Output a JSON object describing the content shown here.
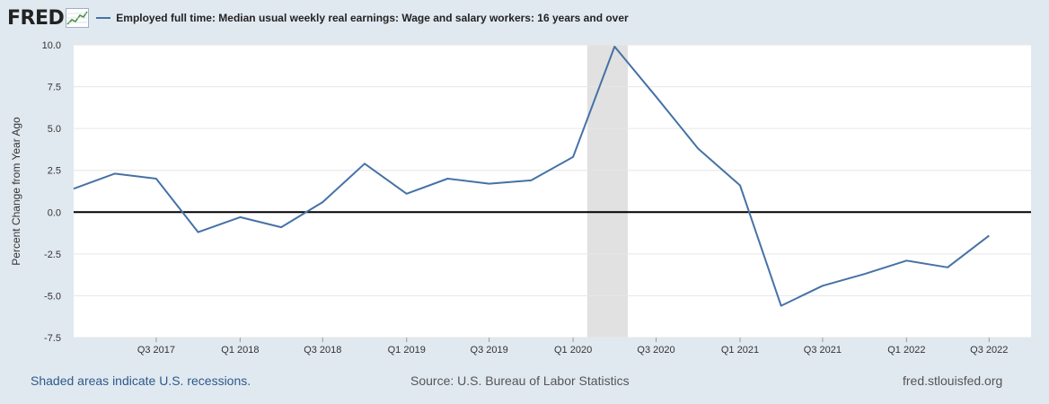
{
  "header": {
    "logo": "FRED",
    "logo_graph_icon": "line-chart-icon"
  },
  "footer": {
    "recession_note": "Shaded areas indicate U.S. recessions.",
    "source": "Source: U.S. Bureau of Labor Statistics",
    "url": "fred.stlouisfed.org"
  },
  "colors": {
    "series": "#4572a7",
    "recession": "#e1e1e1",
    "grid": "#e6e6e6",
    "zero_line": "#000000",
    "background": "#e1e9f0",
    "plot_background": "#ffffff"
  },
  "chart_data": {
    "type": "line",
    "title": "",
    "xlabel": "",
    "ylabel": "Percent Change from Year Ago",
    "ylim": [
      -7.5,
      10.0
    ],
    "yticks": [
      "10.0",
      "7.5",
      "5.0",
      "2.5",
      "0.0",
      "-2.5",
      "-5.0",
      "-7.5"
    ],
    "ytick_values": [
      10.0,
      7.5,
      5.0,
      2.5,
      0.0,
      -2.5,
      -5.0,
      -7.5
    ],
    "xlim": [
      "2017-01-01",
      "2022-10-01"
    ],
    "xtick_labels": [
      "Q3 2017",
      "Q1 2018",
      "Q3 2018",
      "Q1 2019",
      "Q3 2019",
      "Q1 2020",
      "Q3 2020",
      "Q1 2021",
      "Q3 2021",
      "Q1 2022",
      "Q3 2022"
    ],
    "xtick_dates": [
      "2017-07-01",
      "2018-01-01",
      "2018-07-01",
      "2019-01-01",
      "2019-07-01",
      "2020-01-01",
      "2020-07-01",
      "2021-01-01",
      "2021-07-01",
      "2022-01-01",
      "2022-07-01"
    ],
    "recessions": [
      {
        "start": "2020-02-01",
        "end": "2020-04-30"
      }
    ],
    "grid": true,
    "legend": "top-left",
    "series": [
      {
        "name": "Employed full time: Median usual weekly real earnings: Wage and salary workers: 16 years and over",
        "x": [
          "2017-01-01",
          "2017-04-01",
          "2017-07-01",
          "2017-10-01",
          "2018-01-01",
          "2018-04-01",
          "2018-07-01",
          "2018-10-01",
          "2019-01-01",
          "2019-04-01",
          "2019-07-01",
          "2019-10-01",
          "2020-01-01",
          "2020-04-01",
          "2020-07-01",
          "2020-10-01",
          "2021-01-01",
          "2021-04-01",
          "2021-07-01",
          "2021-10-01",
          "2022-01-01",
          "2022-04-01",
          "2022-07-01"
        ],
        "values": [
          1.4,
          2.3,
          2.0,
          -1.2,
          -0.3,
          -0.9,
          0.6,
          2.9,
          1.1,
          2.0,
          1.7,
          1.9,
          3.3,
          9.9,
          6.9,
          3.8,
          1.6,
          -5.6,
          -4.4,
          -3.7,
          -2.9,
          -3.3,
          -1.4
        ]
      }
    ]
  }
}
